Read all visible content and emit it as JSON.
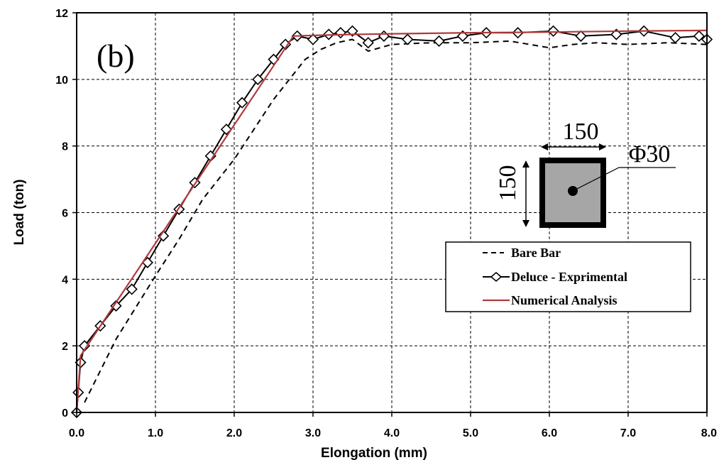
{
  "chart_data": {
    "type": "line",
    "panel_label": "(b)",
    "xlabel": "Elongation (mm)",
    "ylabel": "Load (ton)",
    "xlim": [
      0,
      8
    ],
    "ylim": [
      0,
      12
    ],
    "x_ticks": [
      "0.0",
      "1.0",
      "2.0",
      "3.0",
      "4.0",
      "5.0",
      "6.0",
      "7.0",
      "8.0"
    ],
    "y_ticks": [
      "0",
      "2",
      "4",
      "6",
      "8",
      "10",
      "12"
    ],
    "grid": "dashed",
    "legend_position": "bottom-right",
    "series": [
      {
        "name": "Bare Bar",
        "style": "dashed",
        "color": "#000000",
        "x": [
          0.1,
          0.5,
          1.0,
          1.3,
          1.6,
          2.0,
          2.5,
          2.7,
          2.9,
          3.1,
          3.3,
          3.5,
          3.7,
          4.0,
          4.5,
          5.0,
          5.5,
          6.0,
          6.3,
          6.6,
          7.0,
          7.5,
          8.0
        ],
        "y": [
          0.3,
          2.2,
          4.1,
          5.2,
          6.4,
          7.6,
          9.4,
          10.0,
          10.6,
          10.9,
          11.1,
          11.2,
          10.85,
          11.05,
          11.1,
          11.1,
          11.15,
          10.95,
          11.05,
          11.1,
          11.05,
          11.1,
          11.05
        ]
      },
      {
        "name": "Deluce - Exprimental",
        "style": "solid-diamond",
        "color": "#000000",
        "x": [
          0.0,
          0.02,
          0.05,
          0.1,
          0.3,
          0.5,
          0.7,
          0.9,
          1.1,
          1.3,
          1.5,
          1.7,
          1.9,
          2.1,
          2.3,
          2.5,
          2.65,
          2.8,
          3.0,
          3.2,
          3.35,
          3.5,
          3.7,
          3.9,
          4.2,
          4.6,
          4.9,
          5.2,
          5.6,
          6.05,
          6.4,
          6.85,
          7.2,
          7.6,
          7.9,
          8.0
        ],
        "y": [
          0.0,
          0.6,
          1.5,
          2.0,
          2.6,
          3.2,
          3.7,
          4.5,
          5.3,
          6.1,
          6.9,
          7.7,
          8.5,
          9.3,
          10.0,
          10.6,
          11.05,
          11.3,
          11.2,
          11.35,
          11.4,
          11.45,
          11.1,
          11.3,
          11.2,
          11.15,
          11.3,
          11.4,
          11.4,
          11.45,
          11.3,
          11.35,
          11.45,
          11.25,
          11.3,
          11.2
        ]
      },
      {
        "name": "Numerical Analysis",
        "style": "solid",
        "color": "#b03a3a",
        "x": [
          0.0,
          0.05,
          2.75,
          3.0,
          3.5,
          4.0,
          5.0,
          6.0,
          7.0,
          8.0
        ],
        "y": [
          0.0,
          1.7,
          11.3,
          11.32,
          11.35,
          11.37,
          11.4,
          11.42,
          11.45,
          11.47
        ]
      }
    ]
  },
  "inset": {
    "width_label": "150",
    "height_label": "150",
    "bar_label": "Φ30"
  }
}
